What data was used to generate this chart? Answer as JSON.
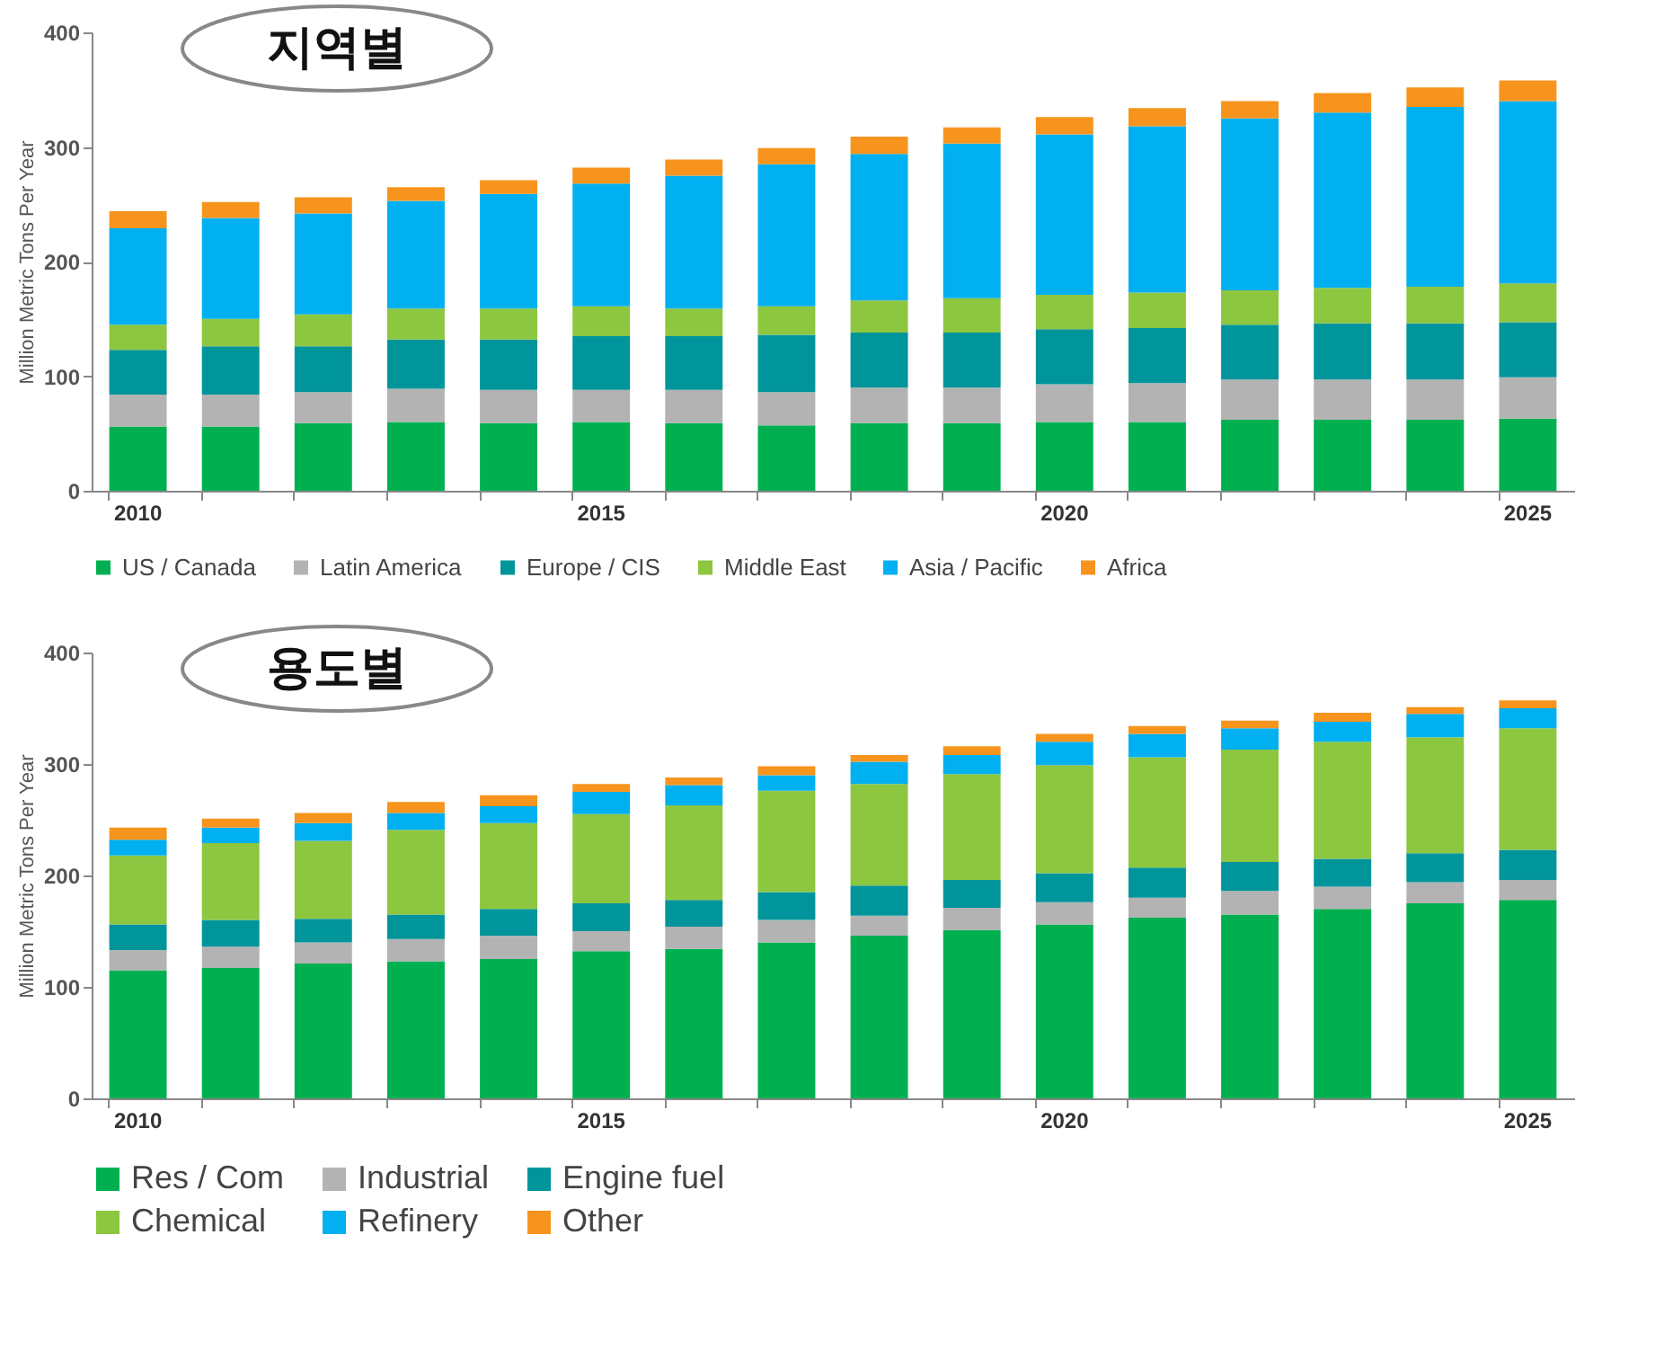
{
  "chart_data": [
    {
      "type": "bar",
      "stacked": true,
      "title": "지역별",
      "ylabel": "Million Metric Tons Per Year",
      "categories": [
        "2010",
        null,
        null,
        null,
        null,
        "2015",
        null,
        null,
        null,
        null,
        "2020",
        null,
        null,
        null,
        null,
        "2025"
      ],
      "ylim": [
        0,
        400
      ],
      "yticks": [
        0,
        100,
        200,
        300,
        400
      ],
      "legend": "bottom",
      "series": [
        {
          "name": "US / Canada",
          "color": "#00b050",
          "values": [
            56,
            56,
            59,
            60,
            59,
            60,
            59,
            57,
            59,
            59,
            60,
            60,
            62,
            62,
            62,
            63
          ]
        },
        {
          "name": "Latin America",
          "color": "#b3b3b3",
          "values": [
            28,
            28,
            27,
            29,
            29,
            28,
            29,
            29,
            31,
            31,
            33,
            34,
            35,
            35,
            35,
            36
          ]
        },
        {
          "name": "Europe / CIS",
          "color": "#00959a",
          "values": [
            39,
            42,
            40,
            43,
            44,
            47,
            47,
            50,
            48,
            48,
            48,
            48,
            48,
            49,
            49,
            48
          ]
        },
        {
          "name": "Middle East",
          "color": "#8dc63f",
          "values": [
            22,
            24,
            28,
            27,
            27,
            26,
            24,
            25,
            28,
            30,
            30,
            31,
            30,
            31,
            32,
            34
          ]
        },
        {
          "name": "Asia / Pacific",
          "color": "#00b0f0",
          "values": [
            84,
            88,
            88,
            94,
            100,
            107,
            116,
            124,
            128,
            135,
            140,
            145,
            150,
            153,
            157,
            159
          ]
        },
        {
          "name": "Africa",
          "color": "#f7941d",
          "values": [
            15,
            14,
            14,
            12,
            12,
            14,
            14,
            14,
            15,
            14,
            15,
            16,
            15,
            17,
            17,
            18
          ]
        }
      ]
    },
    {
      "type": "bar",
      "stacked": true,
      "title": "용도별",
      "ylabel": "Million Metric Tons Per Year",
      "categories": [
        "2010",
        null,
        null,
        null,
        null,
        "2015",
        null,
        null,
        null,
        null,
        "2020",
        null,
        null,
        null,
        null,
        "2025"
      ],
      "ylim": [
        0,
        400
      ],
      "yticks": [
        0,
        100,
        200,
        300,
        400
      ],
      "legend": "bottom",
      "series": [
        {
          "name": "Res / Com",
          "color": "#00b050",
          "values": [
            115,
            117,
            121,
            123,
            125,
            132,
            134,
            140,
            146,
            151,
            156,
            162,
            165,
            170,
            175,
            178
          ]
        },
        {
          "name": "Industrial",
          "color": "#b3b3b3",
          "values": [
            18,
            19,
            19,
            20,
            21,
            18,
            20,
            20,
            18,
            20,
            20,
            18,
            21,
            20,
            19,
            18
          ]
        },
        {
          "name": "Engine fuel",
          "color": "#00959a",
          "values": [
            23,
            24,
            21,
            22,
            24,
            25,
            24,
            25,
            27,
            25,
            26,
            27,
            26,
            25,
            26,
            27
          ]
        },
        {
          "name": "Chemical",
          "color": "#8dc63f",
          "values": [
            62,
            69,
            70,
            76,
            77,
            80,
            85,
            91,
            91,
            95,
            97,
            99,
            101,
            105,
            104,
            109
          ]
        },
        {
          "name": "Refinery",
          "color": "#00b0f0",
          "values": [
            14,
            14,
            16,
            15,
            15,
            20,
            18,
            14,
            20,
            17,
            21,
            21,
            19,
            18,
            21,
            18
          ]
        },
        {
          "name": "Other",
          "color": "#f7941d",
          "values": [
            11,
            8,
            9,
            10,
            10,
            7,
            7,
            8,
            6,
            8,
            7,
            7,
            7,
            8,
            6,
            7
          ]
        }
      ]
    }
  ]
}
